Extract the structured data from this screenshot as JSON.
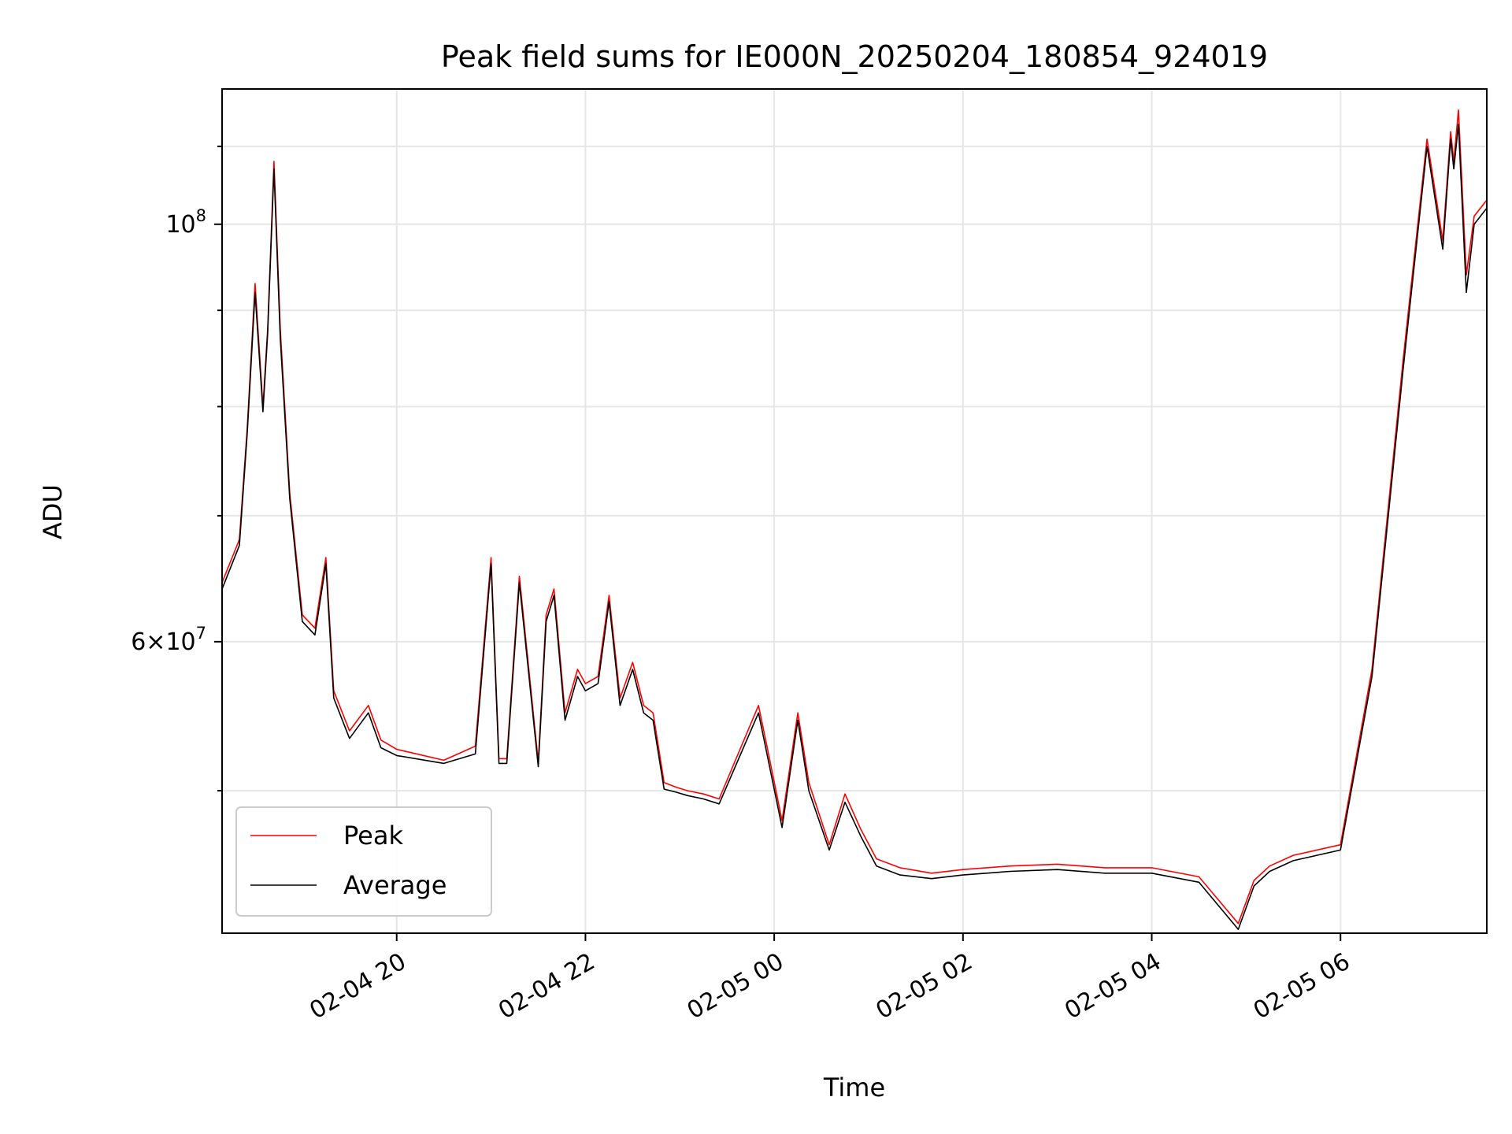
{
  "chart_data": {
    "type": "line",
    "title": "Peak field sums for IE000N_20250204_180854_924019",
    "xlabel": "Time",
    "ylabel": "ADU",
    "yscale": "log",
    "grid": true,
    "legend_position": "lower-left",
    "xlim": [
      "2025-02-04 18:09",
      "2025-02-05 07:33"
    ],
    "ylim": [
      42000000,
      118000000
    ],
    "x_ticks": [
      {
        "value": "2025-02-04 20:00",
        "label": "02-04 20"
      },
      {
        "value": "2025-02-04 22:00",
        "label": "02-04 22"
      },
      {
        "value": "2025-02-05 00:00",
        "label": "02-05 00"
      },
      {
        "value": "2025-02-05 02:00",
        "label": "02-05 02"
      },
      {
        "value": "2025-02-05 04:00",
        "label": "02-05 04"
      },
      {
        "value": "2025-02-05 06:00",
        "label": "02-05 06"
      }
    ],
    "y_ticks": [
      {
        "value": 100000000,
        "label": "10^8"
      },
      {
        "value": 60000000,
        "label": "6×10^7"
      }
    ],
    "x": [
      "2025-02-04 18:09",
      "2025-02-04 18:20",
      "2025-02-04 18:25",
      "2025-02-04 18:30",
      "2025-02-04 18:35",
      "2025-02-04 18:38",
      "2025-02-04 18:42",
      "2025-02-04 18:46",
      "2025-02-04 18:52",
      "2025-02-04 19:00",
      "2025-02-04 19:08",
      "2025-02-04 19:15",
      "2025-02-04 19:20",
      "2025-02-04 19:30",
      "2025-02-04 19:42",
      "2025-02-04 19:50",
      "2025-02-04 20:00",
      "2025-02-04 20:30",
      "2025-02-04 20:50",
      "2025-02-04 21:00",
      "2025-02-04 21:05",
      "2025-02-04 21:10",
      "2025-02-04 21:18",
      "2025-02-04 21:30",
      "2025-02-04 21:35",
      "2025-02-04 21:40",
      "2025-02-04 21:47",
      "2025-02-04 21:55",
      "2025-02-04 22:00",
      "2025-02-04 22:08",
      "2025-02-04 22:15",
      "2025-02-04 22:22",
      "2025-02-04 22:30",
      "2025-02-04 22:37",
      "2025-02-04 22:43",
      "2025-02-04 22:50",
      "2025-02-04 22:58",
      "2025-02-04 23:05",
      "2025-02-04 23:15",
      "2025-02-04 23:25",
      "2025-02-04 23:50",
      "2025-02-04 23:55",
      "2025-02-05 00:05",
      "2025-02-05 00:15",
      "2025-02-05 00:22",
      "2025-02-05 00:35",
      "2025-02-05 00:45",
      "2025-02-05 00:55",
      "2025-02-05 01:05",
      "2025-02-05 01:20",
      "2025-02-05 01:40",
      "2025-02-05 02:00",
      "2025-02-05 02:30",
      "2025-02-05 03:00",
      "2025-02-05 03:30",
      "2025-02-05 04:00",
      "2025-02-05 04:30",
      "2025-02-05 04:55",
      "2025-02-05 05:05",
      "2025-02-05 05:15",
      "2025-02-05 05:30",
      "2025-02-05 06:00",
      "2025-02-05 06:20",
      "2025-02-05 06:40",
      "2025-02-05 06:55",
      "2025-02-05 07:05",
      "2025-02-05 07:10",
      "2025-02-05 07:12",
      "2025-02-05 07:15",
      "2025-02-05 07:20",
      "2025-02-05 07:25",
      "2025-02-05 07:33"
    ],
    "series": [
      {
        "name": "Peak",
        "color": "#ff0000",
        "values": [
          64500000,
          68000000,
          78000000,
          93000000,
          80000000,
          88000000,
          108000000,
          88000000,
          72000000,
          62000000,
          61000000,
          66500000,
          56500000,
          53800000,
          55500000,
          53200000,
          52600000,
          51900000,
          52800000,
          66500000,
          52000000,
          52000000,
          65000000,
          51800000,
          62000000,
          64000000,
          55000000,
          58000000,
          57000000,
          57500000,
          63500000,
          56000000,
          58500000,
          55500000,
          55000000,
          50500000,
          50200000,
          50000000,
          49800000,
          49500000,
          55500000,
          53000000,
          48200000,
          55000000,
          50500000,
          46800000,
          49800000,
          47700000,
          46000000,
          45500000,
          45200000,
          45400000,
          45600000,
          45700000,
          45500000,
          45500000,
          45000000,
          42500000,
          44800000,
          45600000,
          46200000,
          46800000,
          58000000,
          85000000,
          111000000,
          98000000,
          112000000,
          108000000,
          115000000,
          94000000,
          101000000,
          103000000
        ]
      },
      {
        "name": "Average",
        "color": "#000000",
        "values": [
          64000000,
          67500000,
          77500000,
          92000000,
          79500000,
          87500000,
          107000000,
          87000000,
          71500000,
          61500000,
          60500000,
          66000000,
          56000000,
          53300000,
          55000000,
          52700000,
          52200000,
          51700000,
          52300000,
          66000000,
          51700000,
          51700000,
          64500000,
          51500000,
          61500000,
          63500000,
          54500000,
          57500000,
          56500000,
          57000000,
          63000000,
          55500000,
          58000000,
          55000000,
          54500000,
          50100000,
          49900000,
          49700000,
          49500000,
          49200000,
          55000000,
          52500000,
          47800000,
          54500000,
          50000000,
          46500000,
          49300000,
          47300000,
          45600000,
          45100000,
          44900000,
          45100000,
          45300000,
          45400000,
          45200000,
          45200000,
          44700000,
          42200000,
          44500000,
          45300000,
          45900000,
          46500000,
          57500000,
          84000000,
          110000000,
          97000000,
          111000000,
          107000000,
          113000000,
          92000000,
          100000000,
          102000000
        ]
      }
    ]
  }
}
